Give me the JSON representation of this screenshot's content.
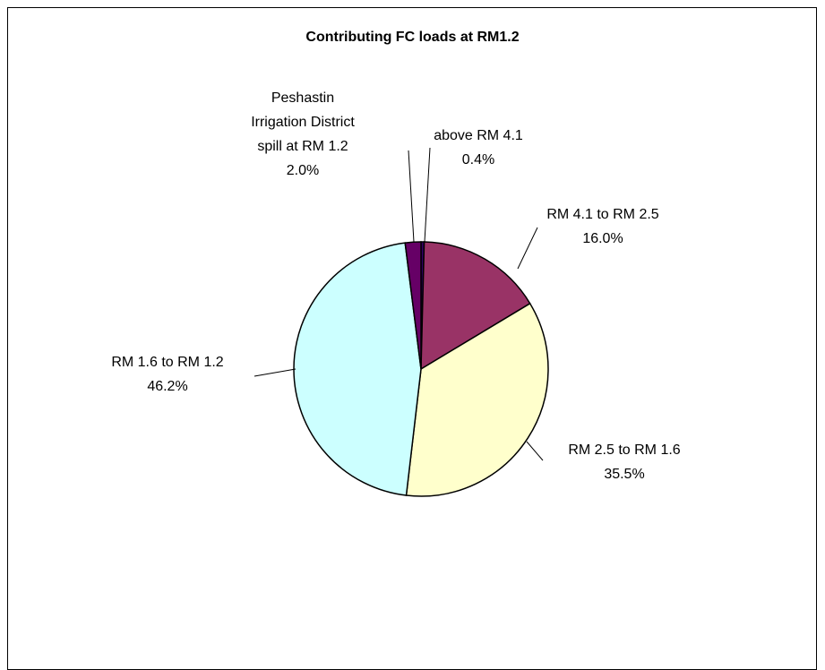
{
  "chart_data": {
    "type": "pie",
    "title": "Contributing FC loads at RM1.2",
    "categories": [
      "above RM 4.1",
      "RM 4.1 to RM 2.5",
      "RM 2.5 to RM 1.6",
      "RM 1.6 to RM 1.2",
      "Peshastin Irrigation District spill at RM 1.2"
    ],
    "values": [
      0.4,
      16.0,
      35.5,
      46.2,
      2.0
    ],
    "value_labels": [
      "0.4%",
      "16.0%",
      "35.5%",
      "46.2%",
      "2.0%"
    ],
    "colors": [
      "#330066",
      "#993366",
      "#ffffcc",
      "#ccffff",
      "#660066"
    ]
  }
}
